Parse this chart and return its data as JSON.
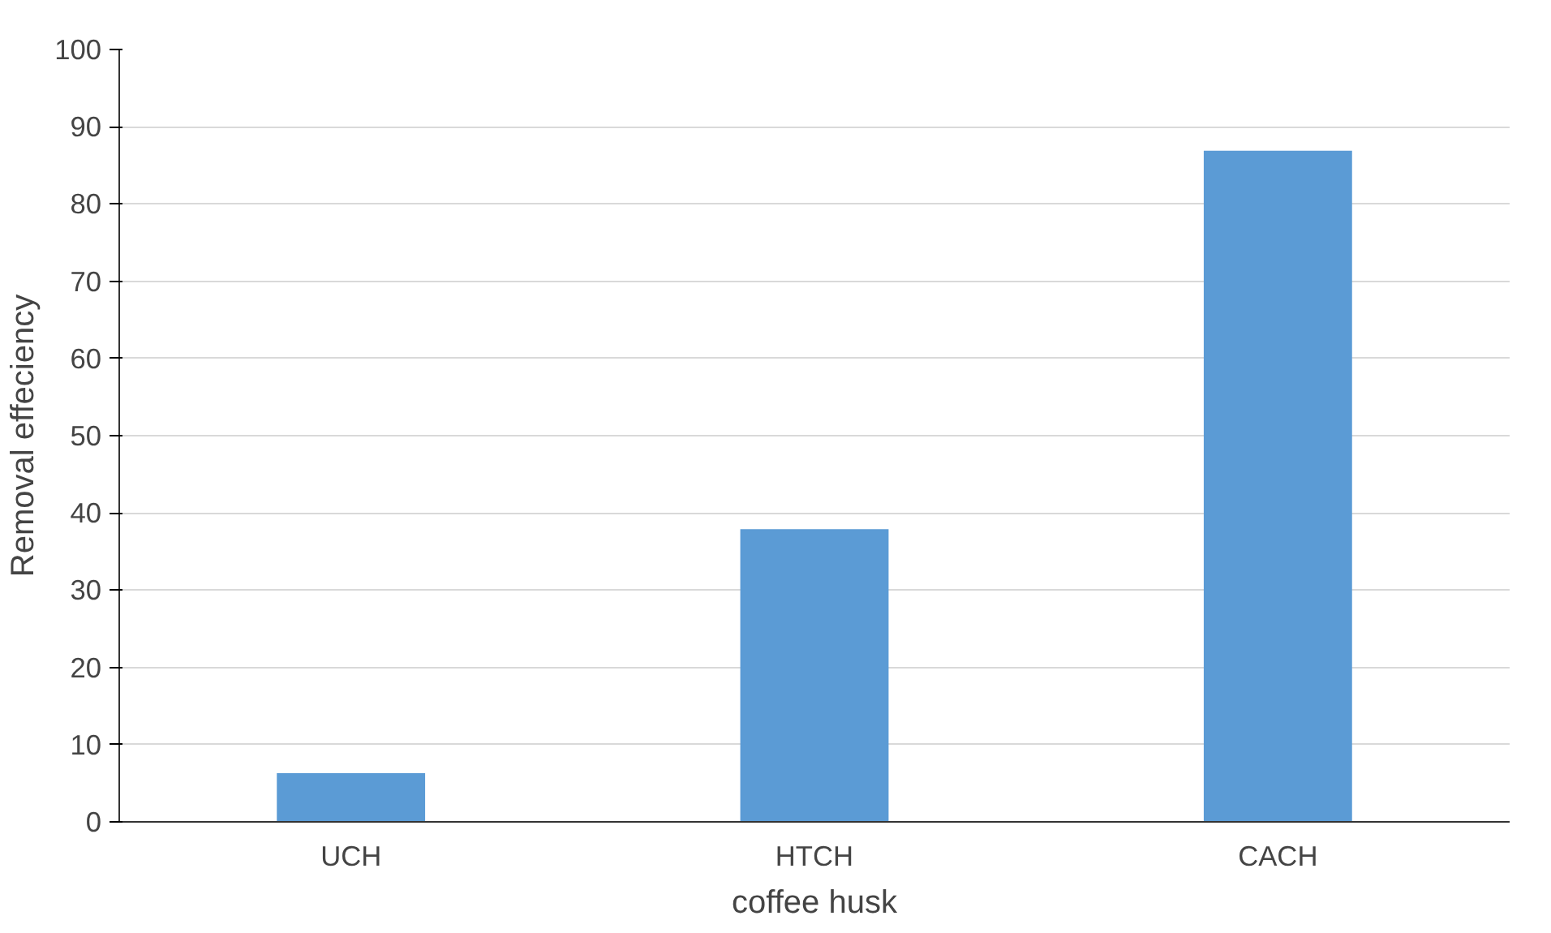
{
  "chart_data": {
    "type": "bar",
    "xlabel": "coffee husk",
    "ylabel": "Removal effeciency",
    "categories": [
      "UCH",
      "HTCH",
      "CACH"
    ],
    "values": [
      6.3,
      37.9,
      86.9
    ],
    "color": "#5b9bd5",
    "ylim": [
      0,
      100
    ],
    "yticks": [
      0,
      10,
      20,
      30,
      40,
      50,
      60,
      70,
      80,
      90,
      100
    ],
    "grid": "y"
  }
}
